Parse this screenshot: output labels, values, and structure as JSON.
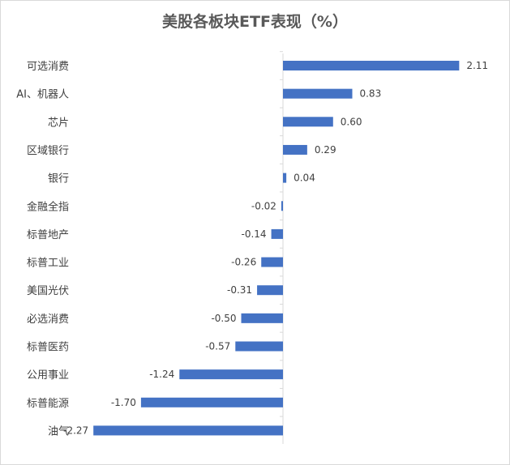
{
  "chart_data": {
    "type": "bar",
    "orientation": "horizontal",
    "title": "美股各板块ETF表现（%）",
    "categories": [
      "可选消费",
      "AI、机器人",
      "芯片",
      "区域银行",
      "银行",
      "金融全指",
      "标普地产",
      "标普工业",
      "美国光伏",
      "必选消费",
      "标普医药",
      "公用事业",
      "标普能源",
      "油气"
    ],
    "values": [
      2.11,
      0.83,
      0.6,
      0.29,
      0.04,
      -0.02,
      -0.14,
      -0.26,
      -0.31,
      -0.5,
      -0.57,
      -1.24,
      -1.7,
      -2.27
    ],
    "value_labels": [
      "2.11",
      "0.83",
      "0.60",
      "0.29",
      "0.04",
      "-0.02",
      "-0.14",
      "-0.26",
      "-0.31",
      "-0.50",
      "-0.57",
      "-1.24",
      "-1.70",
      "-2.27"
    ],
    "xlim": [
      -2.27,
      2.11
    ],
    "grid": false,
    "legend": "none",
    "bar_color": "#4472c4"
  }
}
